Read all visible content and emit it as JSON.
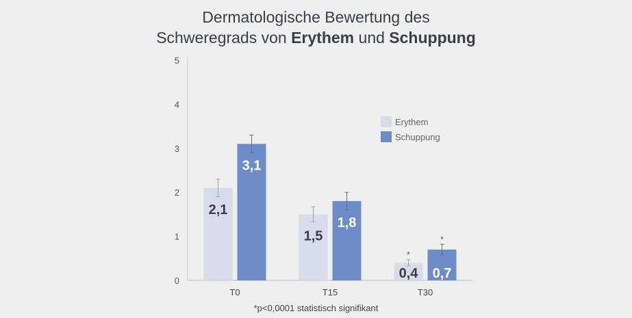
{
  "title": {
    "line1": "Dermatologische Bewertung des",
    "line2_pre": "Schweregrads von ",
    "line2_bold1": "Erythem",
    "line2_mid": " und ",
    "line2_bold2": "Schuppung"
  },
  "footnote": "*p<0,0001 statistisch signifikant",
  "colors": {
    "background": "#efefef",
    "erythem": "#d6dce9",
    "schuppung": "#6e8cc8",
    "erythem_label": "#3a3f45",
    "schuppung_label": "#ffffff"
  },
  "chart_data": {
    "type": "bar",
    "title": "Dermatologische Bewertung des Schweregrads von Erythem und Schuppung",
    "categories": [
      "T0",
      "T15",
      "T30"
    ],
    "series": [
      {
        "name": "Erythem",
        "values": [
          2.1,
          1.5,
          0.4
        ],
        "labels": [
          "2,1",
          "1,5",
          "0,4"
        ],
        "error": [
          0.2,
          0.17,
          0.07
        ],
        "significant": [
          false,
          false,
          true
        ]
      },
      {
        "name": "Schuppung",
        "values": [
          3.1,
          1.8,
          0.7
        ],
        "labels": [
          "3,1",
          "1,8",
          "0,7"
        ],
        "error": [
          0.2,
          0.2,
          0.12
        ],
        "significant": [
          false,
          false,
          true
        ]
      }
    ],
    "yticks": [
      "0",
      "1",
      "2",
      "3",
      "4",
      "5"
    ],
    "ylim": [
      0,
      5
    ],
    "significance_symbol": "*",
    "legend_position": "top-right",
    "grid": false
  }
}
